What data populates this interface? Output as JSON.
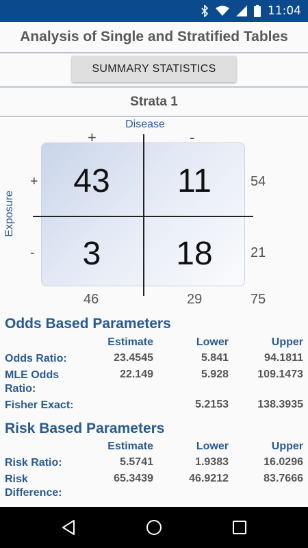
{
  "status_bar": {
    "time": "11:04",
    "icons": [
      "bluetooth-icon",
      "wifi-icon",
      "signal-icon",
      "battery-icon"
    ]
  },
  "app": {
    "title": "Analysis of Single and Stratified Tables"
  },
  "summary_button": {
    "label": "SUMMARY STATISTICS"
  },
  "strata": {
    "title": "Strata 1"
  },
  "table": {
    "disease_label": "Disease",
    "exposure_label": "Exposure",
    "col_plus": "+",
    "col_minus": "-",
    "row_plus": "+",
    "row_minus": "-",
    "a": "43",
    "b": "11",
    "c": "3",
    "d": "18",
    "row1_total": "54",
    "row2_total": "21",
    "col1_total": "46",
    "col2_total": "29",
    "grand_total": "75"
  },
  "odds": {
    "title": "Odds Based Parameters",
    "headers": {
      "estimate": "Estimate",
      "lower": "Lower",
      "upper": "Upper"
    },
    "rows": [
      {
        "label": "Odds Ratio:",
        "estimate": "23.4545",
        "lower": "5.841",
        "upper": "94.1811"
      },
      {
        "label": "MLE Odds Ratio:",
        "estimate": "22.149",
        "lower": "5.928",
        "upper": "109.1473"
      },
      {
        "label": "Fisher Exact:",
        "estimate": "",
        "lower": "5.2153",
        "upper": "138.3935"
      }
    ]
  },
  "risk": {
    "title": "Risk Based Parameters",
    "headers": {
      "estimate": "Estimate",
      "lower": "Lower",
      "upper": "Upper"
    },
    "rows": [
      {
        "label": "Risk Ratio:",
        "estimate": "5.5741",
        "lower": "1.9383",
        "upper": "16.0296"
      },
      {
        "label": "Risk Difference:",
        "estimate": "65.3439",
        "lower": "46.9212",
        "upper": "83.7666"
      }
    ]
  },
  "nav": {
    "buttons": [
      "back-icon",
      "home-icon",
      "recents-icon"
    ]
  }
}
